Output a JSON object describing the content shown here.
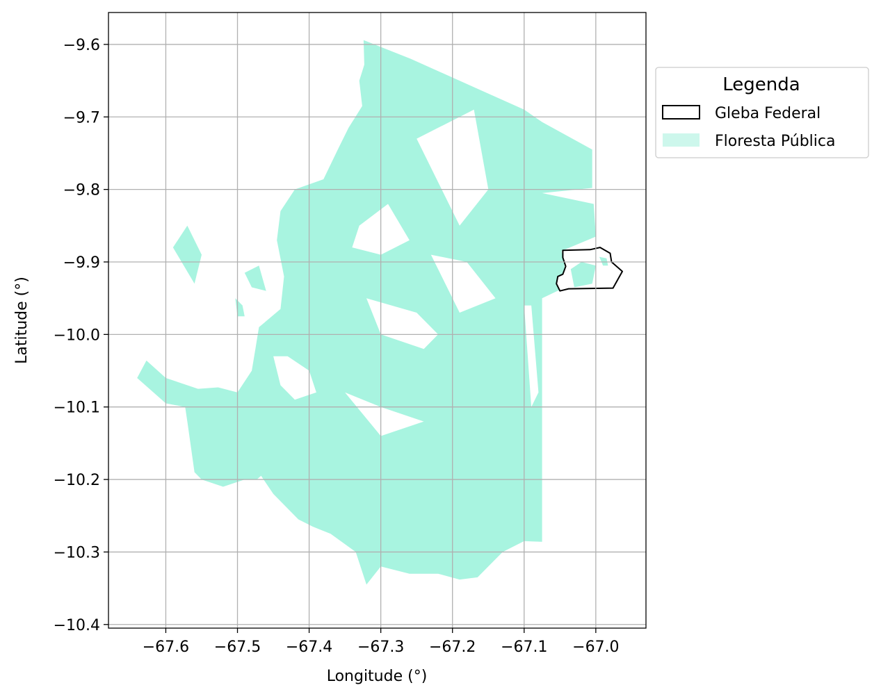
{
  "map": {
    "xlabel": "Longitude (°)",
    "ylabel": "Latitude (°)",
    "xlim": [
      -67.68,
      -66.93
    ],
    "ylim": [
      -10.405,
      -9.556
    ],
    "x_ticks": [
      -67.6,
      -67.5,
      -67.4,
      -67.3,
      -67.2,
      -67.1,
      -67.0
    ],
    "x_tick_labels": [
      "−67.6",
      "−67.5",
      "−67.4",
      "−67.3",
      "−67.2",
      "−67.1",
      "−67.0"
    ],
    "y_ticks": [
      -9.6,
      -9.7,
      -9.8,
      -9.9,
      -10.0,
      -10.1,
      -10.2,
      -10.3,
      -10.4
    ],
    "y_tick_labels": [
      "−9.6",
      "−9.7",
      "−9.8",
      "−9.9",
      "−10.0",
      "−10.1",
      "−10.2",
      "−10.3",
      "−10.4"
    ],
    "grid": true,
    "colors": {
      "forest": "#a8f4e0",
      "forest_legend": "#cdf7ec",
      "gleba_edge": "#000000",
      "grid": "#b0b0b0"
    },
    "legend": {
      "title": "Legenda",
      "placement": "outside-right-top",
      "entries": [
        {
          "label": "Gleba Federal",
          "style": "outline"
        },
        {
          "label": "Floresta Pública",
          "style": "fill"
        }
      ]
    },
    "forest_polygons": [
      [
        [
          -67.324,
          -9.594
        ],
        [
          -67.258,
          -9.62
        ],
        [
          -67.1,
          -9.69
        ],
        [
          -67.075,
          -9.707
        ],
        [
          -67.005,
          -9.745
        ],
        [
          -67.005,
          -9.798
        ],
        [
          -67.075,
          -9.805
        ],
        [
          -67.003,
          -9.82
        ],
        [
          -67.0,
          -9.865
        ],
        [
          -67.048,
          -9.885
        ],
        [
          -67.044,
          -9.9
        ],
        [
          -67.043,
          -9.935
        ],
        [
          -67.075,
          -9.95
        ],
        [
          -67.075,
          -10.09
        ],
        [
          -67.075,
          -10.286
        ],
        [
          -67.1,
          -10.285
        ],
        [
          -67.13,
          -10.3
        ],
        [
          -67.165,
          -10.335
        ],
        [
          -67.19,
          -10.338
        ],
        [
          -67.22,
          -10.33
        ],
        [
          -67.26,
          -10.33
        ],
        [
          -67.3,
          -10.32
        ],
        [
          -67.32,
          -10.345
        ],
        [
          -67.335,
          -10.3
        ],
        [
          -67.37,
          -10.275
        ],
        [
          -67.395,
          -10.265
        ],
        [
          -67.415,
          -10.255
        ],
        [
          -67.45,
          -10.22
        ],
        [
          -67.467,
          -10.195
        ],
        [
          -67.473,
          -10.2
        ],
        [
          -67.49,
          -10.2
        ],
        [
          -67.52,
          -10.21
        ],
        [
          -67.55,
          -10.2
        ],
        [
          -67.56,
          -10.19
        ],
        [
          -67.57,
          -10.12
        ],
        [
          -67.573,
          -10.1
        ],
        [
          -67.6,
          -10.095
        ],
        [
          -67.64,
          -10.06
        ],
        [
          -67.627,
          -10.036
        ],
        [
          -67.6,
          -10.06
        ],
        [
          -67.555,
          -10.075
        ],
        [
          -67.527,
          -10.073
        ],
        [
          -67.5,
          -10.08
        ],
        [
          -67.48,
          -10.05
        ],
        [
          -67.475,
          -10.02
        ],
        [
          -67.47,
          -9.99
        ],
        [
          -67.44,
          -9.965
        ],
        [
          -67.435,
          -9.92
        ],
        [
          -67.445,
          -9.87
        ],
        [
          -67.44,
          -9.83
        ],
        [
          -67.42,
          -9.8
        ],
        [
          -67.38,
          -9.786
        ],
        [
          -67.36,
          -9.745
        ],
        [
          -67.345,
          -9.715
        ],
        [
          -67.326,
          -9.685
        ],
        [
          -67.33,
          -9.65
        ],
        [
          -67.323,
          -9.628
        ],
        [
          -67.324,
          -9.594
        ]
      ],
      [
        [
          -67.49,
          -9.915
        ],
        [
          -67.47,
          -9.905
        ],
        [
          -67.46,
          -9.94
        ],
        [
          -67.48,
          -9.935
        ],
        [
          -67.49,
          -9.915
        ]
      ],
      [
        [
          -67.503,
          -9.95
        ],
        [
          -67.493,
          -9.96
        ],
        [
          -67.49,
          -9.975
        ],
        [
          -67.5,
          -9.975
        ],
        [
          -67.503,
          -9.95
        ]
      ],
      [
        [
          -67.59,
          -9.88
        ],
        [
          -67.57,
          -9.85
        ],
        [
          -67.55,
          -9.89
        ],
        [
          -67.56,
          -9.93
        ],
        [
          -67.59,
          -9.88
        ]
      ]
    ],
    "forest_holes": [
      [
        [
          -67.45,
          -10.03
        ],
        [
          -67.43,
          -10.03
        ],
        [
          -67.4,
          -10.05
        ],
        [
          -67.39,
          -10.08
        ],
        [
          -67.42,
          -10.09
        ],
        [
          -67.44,
          -10.07
        ],
        [
          -67.45,
          -10.03
        ]
      ],
      [
        [
          -67.32,
          -9.95
        ],
        [
          -67.25,
          -9.97
        ],
        [
          -67.22,
          -10.0
        ],
        [
          -67.24,
          -10.02
        ],
        [
          -67.3,
          -10.0
        ],
        [
          -67.32,
          -9.95
        ]
      ],
      [
        [
          -67.23,
          -9.89
        ],
        [
          -67.18,
          -9.9
        ],
        [
          -67.14,
          -9.95
        ],
        [
          -67.19,
          -9.97
        ],
        [
          -67.23,
          -9.89
        ]
      ],
      [
        [
          -67.29,
          -9.82
        ],
        [
          -67.33,
          -9.85
        ],
        [
          -67.34,
          -9.88
        ],
        [
          -67.3,
          -9.89
        ],
        [
          -67.26,
          -9.87
        ],
        [
          -67.29,
          -9.82
        ]
      ],
      [
        [
          -67.17,
          -9.69
        ],
        [
          -67.25,
          -9.73
        ],
        [
          -67.19,
          -9.85
        ],
        [
          -67.15,
          -9.8
        ],
        [
          -67.17,
          -9.69
        ]
      ],
      [
        [
          -67.35,
          -10.08
        ],
        [
          -67.3,
          -10.1
        ],
        [
          -67.24,
          -10.12
        ],
        [
          -67.3,
          -10.14
        ],
        [
          -67.35,
          -10.08
        ]
      ],
      [
        [
          -67.1,
          -9.96
        ],
        [
          -67.09,
          -10.1
        ],
        [
          -67.08,
          -10.08
        ],
        [
          -67.09,
          -9.96
        ],
        [
          -67.1,
          -9.96
        ]
      ]
    ],
    "gleba_polygon": [
      [
        -67.046,
        -9.884
      ],
      [
        -67.008,
        -9.883
      ],
      [
        -66.994,
        -9.88
      ],
      [
        -66.98,
        -9.888
      ],
      [
        -66.978,
        -9.9
      ],
      [
        -66.963,
        -9.913
      ],
      [
        -66.976,
        -9.936
      ],
      [
        -67.038,
        -9.937
      ],
      [
        -67.05,
        -9.94
      ],
      [
        -67.055,
        -9.93
      ],
      [
        -67.053,
        -9.92
      ],
      [
        -67.046,
        -9.917
      ],
      [
        -67.042,
        -9.906
      ],
      [
        -67.046,
        -9.894
      ],
      [
        -67.046,
        -9.884
      ]
    ],
    "gleba_inner_forest": [
      [
        [
          -67.035,
          -9.91
        ],
        [
          -67.02,
          -9.9
        ],
        [
          -67.0,
          -9.905
        ],
        [
          -67.005,
          -9.93
        ],
        [
          -67.03,
          -9.935
        ],
        [
          -67.035,
          -9.91
        ]
      ],
      [
        [
          -66.995,
          -9.893
        ],
        [
          -66.985,
          -9.895
        ],
        [
          -66.983,
          -9.905
        ],
        [
          -66.99,
          -9.905
        ],
        [
          -66.995,
          -9.893
        ]
      ]
    ]
  }
}
